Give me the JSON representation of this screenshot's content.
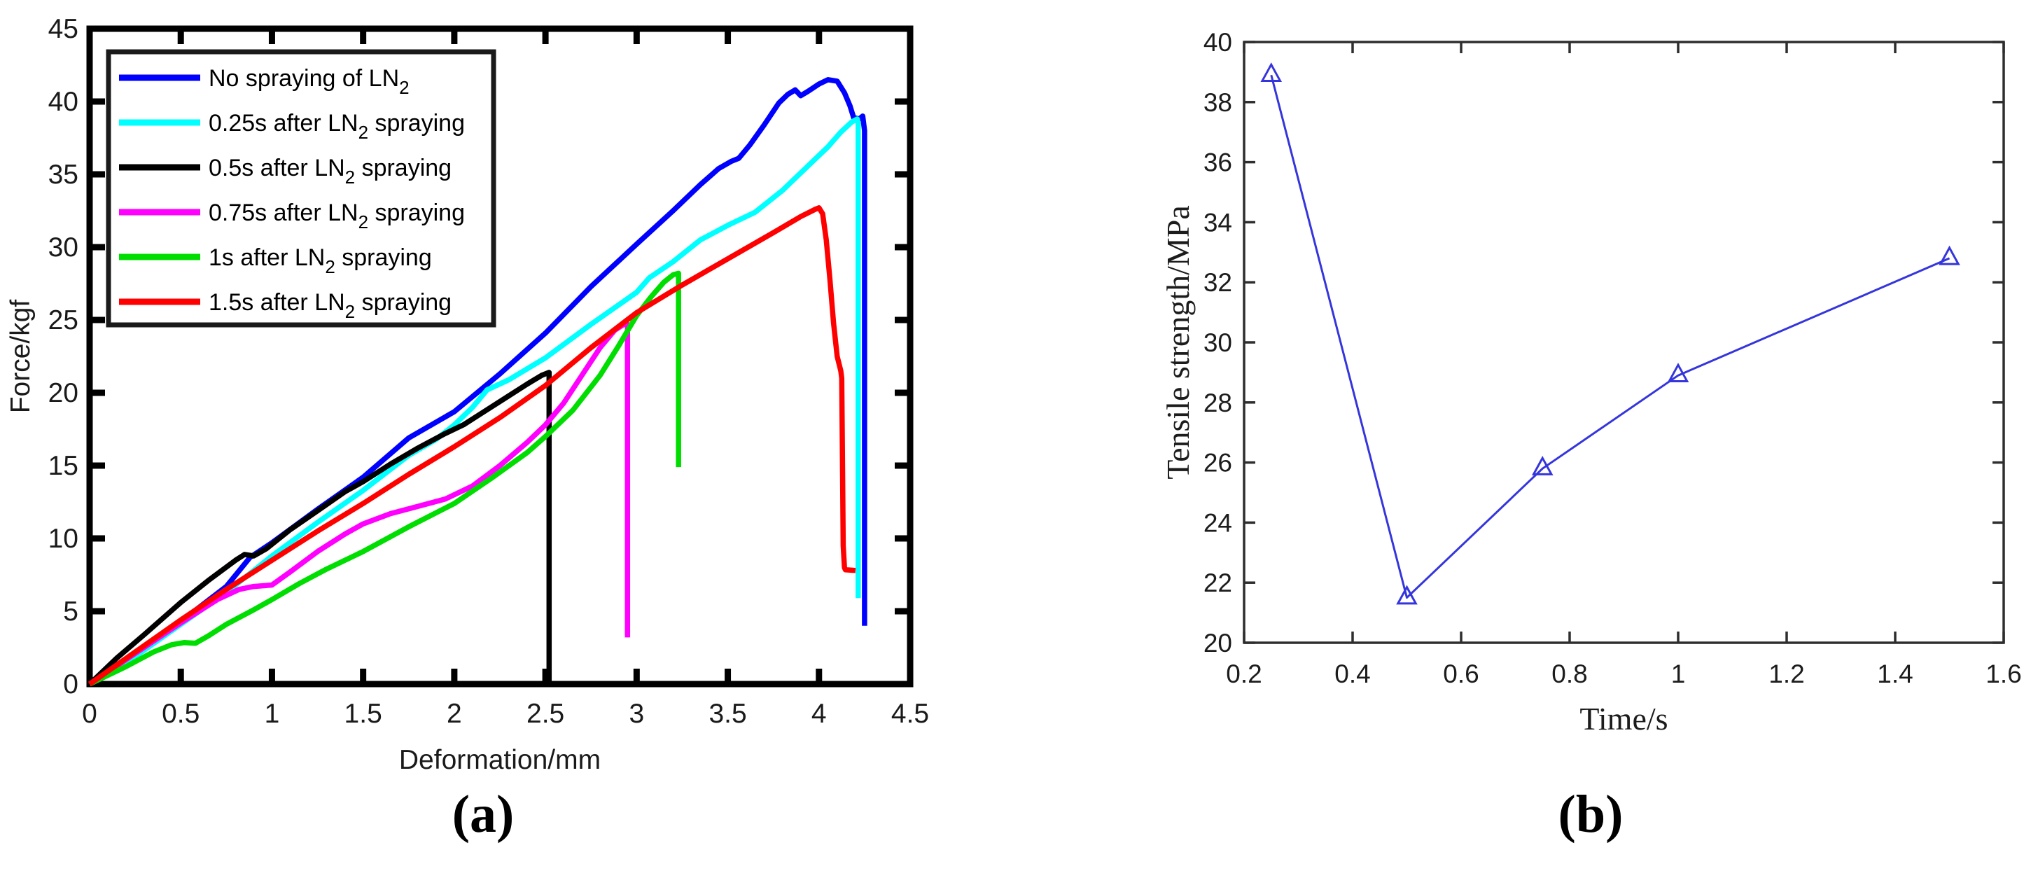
{
  "figure": {
    "captions": {
      "a": "(a)",
      "b": "(b)"
    }
  },
  "chart_data": [
    {
      "id": "a",
      "type": "line",
      "title": "",
      "xlabel": "Deformation/mm",
      "ylabel": "Force/kgf",
      "xlim": [
        0,
        4.5
      ],
      "ylim": [
        0,
        45
      ],
      "xticks": [
        0,
        0.5,
        1,
        1.5,
        2,
        2.5,
        3,
        3.5,
        4,
        4.5
      ],
      "xtick_labels": [
        "0",
        "0.5",
        "1",
        "1.5",
        "2",
        "2.5",
        "3",
        "3.5",
        "4",
        "4.5"
      ],
      "yticks": [
        0,
        5,
        10,
        15,
        20,
        25,
        30,
        35,
        40,
        45
      ],
      "ytick_labels": [
        "0",
        "5",
        "10",
        "15",
        "20",
        "25",
        "30",
        "35",
        "40",
        "45"
      ],
      "grid": false,
      "legend_position": "top-left",
      "series": [
        {
          "name": "no-spraying",
          "color": "#0000ff",
          "label_parts": [
            {
              "t": "No spraying of LN"
            },
            {
              "t": "2",
              "sub": true
            }
          ],
          "points": [
            [
              0,
              0
            ],
            [
              0.25,
              2.0
            ],
            [
              0.5,
              4.3
            ],
            [
              0.75,
              6.7
            ],
            [
              0.88,
              8.7
            ],
            [
              1,
              9.7
            ],
            [
              1.25,
              12.0
            ],
            [
              1.5,
              14.2
            ],
            [
              1.75,
              16.9
            ],
            [
              2,
              18.7
            ],
            [
              2.25,
              21.3
            ],
            [
              2.5,
              24.1
            ],
            [
              2.75,
              27.3
            ],
            [
              3,
              30.2
            ],
            [
              3.2,
              32.5
            ],
            [
              3.35,
              34.3
            ],
            [
              3.45,
              35.4
            ],
            [
              3.52,
              35.9
            ],
            [
              3.56,
              36.1
            ],
            [
              3.62,
              37.0
            ],
            [
              3.7,
              38.4
            ],
            [
              3.78,
              39.9
            ],
            [
              3.83,
              40.5
            ],
            [
              3.87,
              40.8
            ],
            [
              3.9,
              40.4
            ],
            [
              3.94,
              40.7
            ],
            [
              4.0,
              41.2
            ],
            [
              4.05,
              41.5
            ],
            [
              4.1,
              41.4
            ],
            [
              4.14,
              40.6
            ],
            [
              4.17,
              39.7
            ],
            [
              4.19,
              38.9
            ],
            [
              4.22,
              38.8
            ],
            [
              4.24,
              39.0
            ],
            [
              4.25,
              38.0
            ],
            [
              4.25,
              4.0
            ]
          ]
        },
        {
          "name": "0.25s-after",
          "color": "#00ffff",
          "label_parts": [
            {
              "t": "0.25s after LN"
            },
            {
              "t": "2",
              "sub": true
            },
            {
              "t": " spraying"
            }
          ],
          "points": [
            [
              0,
              0
            ],
            [
              0.25,
              1.9
            ],
            [
              0.5,
              4.1
            ],
            [
              0.75,
              6.3
            ],
            [
              1,
              8.8
            ],
            [
              1.25,
              11.1
            ],
            [
              1.5,
              13.3
            ],
            [
              1.75,
              15.7
            ],
            [
              1.9,
              16.8
            ],
            [
              2,
              17.8
            ],
            [
              2.1,
              19.0
            ],
            [
              2.18,
              20.2
            ],
            [
              2.3,
              20.9
            ],
            [
              2.5,
              22.4
            ],
            [
              2.75,
              24.7
            ],
            [
              3,
              26.9
            ],
            [
              3.07,
              27.9
            ],
            [
              3.2,
              29.0
            ],
            [
              3.35,
              30.5
            ],
            [
              3.5,
              31.5
            ],
            [
              3.65,
              32.4
            ],
            [
              3.8,
              33.9
            ],
            [
              3.95,
              35.7
            ],
            [
              4.05,
              36.9
            ],
            [
              4.12,
              37.9
            ],
            [
              4.18,
              38.6
            ],
            [
              4.21,
              38.8
            ],
            [
              4.215,
              38.5
            ],
            [
              4.215,
              5.9
            ]
          ]
        },
        {
          "name": "0.5s-after",
          "color": "#000000",
          "label_parts": [
            {
              "t": "0.5s after LN"
            },
            {
              "t": "2",
              "sub": true
            },
            {
              "t": " spraying"
            }
          ],
          "points": [
            [
              0,
              0
            ],
            [
              0.15,
              1.8
            ],
            [
              0.3,
              3.4
            ],
            [
              0.5,
              5.6
            ],
            [
              0.65,
              7.1
            ],
            [
              0.8,
              8.5
            ],
            [
              0.85,
              8.9
            ],
            [
              0.9,
              8.8
            ],
            [
              0.97,
              9.3
            ],
            [
              1.1,
              10.6
            ],
            [
              1.25,
              11.9
            ],
            [
              1.4,
              13.2
            ],
            [
              1.5,
              13.9
            ],
            [
              1.65,
              15.1
            ],
            [
              1.8,
              16.2
            ],
            [
              1.95,
              17.2
            ],
            [
              2.05,
              17.8
            ],
            [
              2.15,
              18.6
            ],
            [
              2.3,
              19.8
            ],
            [
              2.4,
              20.6
            ],
            [
              2.48,
              21.2
            ],
            [
              2.52,
              21.4
            ],
            [
              2.52,
              0.1
            ]
          ]
        },
        {
          "name": "0.75s-after",
          "color": "#ff00ff",
          "label_parts": [
            {
              "t": "0.75s after LN"
            },
            {
              "t": "2",
              "sub": true
            },
            {
              "t": " spraying"
            }
          ],
          "points": [
            [
              0,
              0
            ],
            [
              0.25,
              2.1
            ],
            [
              0.5,
              4.2
            ],
            [
              0.7,
              5.8
            ],
            [
              0.82,
              6.5
            ],
            [
              0.9,
              6.7
            ],
            [
              1,
              6.8
            ],
            [
              1.1,
              7.7
            ],
            [
              1.25,
              9.1
            ],
            [
              1.4,
              10.3
            ],
            [
              1.5,
              11.0
            ],
            [
              1.65,
              11.7
            ],
            [
              1.8,
              12.2
            ],
            [
              1.95,
              12.7
            ],
            [
              2.1,
              13.6
            ],
            [
              2.25,
              15.0
            ],
            [
              2.4,
              16.6
            ],
            [
              2.5,
              17.8
            ],
            [
              2.6,
              19.3
            ],
            [
              2.7,
              21.2
            ],
            [
              2.8,
              23.1
            ],
            [
              2.88,
              24.3
            ],
            [
              2.93,
              24.7
            ],
            [
              2.95,
              24.7
            ],
            [
              2.95,
              3.2
            ]
          ]
        },
        {
          "name": "1s-after",
          "color": "#00dd00",
          "label_parts": [
            {
              "t": "1s after LN"
            },
            {
              "t": "2",
              "sub": true
            },
            {
              "t": " spraying"
            }
          ],
          "points": [
            [
              0,
              0
            ],
            [
              0.2,
              1.2
            ],
            [
              0.35,
              2.2
            ],
            [
              0.45,
              2.7
            ],
            [
              0.52,
              2.85
            ],
            [
              0.58,
              2.8
            ],
            [
              0.65,
              3.3
            ],
            [
              0.75,
              4.1
            ],
            [
              0.9,
              5.1
            ],
            [
              1,
              5.8
            ],
            [
              1.15,
              6.9
            ],
            [
              1.3,
              7.9
            ],
            [
              1.5,
              9.1
            ],
            [
              1.75,
              10.8
            ],
            [
              2,
              12.4
            ],
            [
              2.2,
              14.1
            ],
            [
              2.4,
              15.9
            ],
            [
              2.5,
              17.0
            ],
            [
              2.65,
              18.8
            ],
            [
              2.8,
              21.2
            ],
            [
              2.9,
              23.2
            ],
            [
              3,
              25.3
            ],
            [
              3.08,
              26.6
            ],
            [
              3.15,
              27.6
            ],
            [
              3.2,
              28.1
            ],
            [
              3.23,
              28.2
            ],
            [
              3.23,
              14.9
            ]
          ]
        },
        {
          "name": "1.5s-after",
          "color": "#ff0000",
          "label_parts": [
            {
              "t": "1.5s after LN"
            },
            {
              "t": "2",
              "sub": true
            },
            {
              "t": " spraying"
            }
          ],
          "points": [
            [
              0,
              0
            ],
            [
              0.25,
              2.2
            ],
            [
              0.5,
              4.4
            ],
            [
              0.75,
              6.5
            ],
            [
              1,
              8.5
            ],
            [
              1.25,
              10.5
            ],
            [
              1.5,
              12.4
            ],
            [
              1.75,
              14.4
            ],
            [
              2,
              16.3
            ],
            [
              2.25,
              18.3
            ],
            [
              2.5,
              20.5
            ],
            [
              2.75,
              23.1
            ],
            [
              3,
              25.5
            ],
            [
              3.25,
              27.4
            ],
            [
              3.5,
              29.2
            ],
            [
              3.75,
              31.0
            ],
            [
              3.9,
              32.1
            ],
            [
              3.98,
              32.6
            ],
            [
              4.0,
              32.7
            ],
            [
              4.02,
              32.3
            ],
            [
              4.04,
              30.5
            ],
            [
              4.06,
              27.8
            ],
            [
              4.08,
              24.8
            ],
            [
              4.1,
              22.5
            ],
            [
              4.12,
              21.5
            ],
            [
              4.125,
              21.0
            ],
            [
              4.13,
              14.0
            ],
            [
              4.133,
              9.5
            ],
            [
              4.14,
              8.0
            ],
            [
              4.145,
              7.85
            ],
            [
              4.2,
              7.8
            ]
          ]
        }
      ]
    },
    {
      "id": "b",
      "type": "line",
      "title": "",
      "xlabel": "Time/s",
      "ylabel": "Tensile strength/MPa",
      "xlim": [
        0.2,
        1.6
      ],
      "ylim": [
        20,
        40
      ],
      "xticks": [
        0.2,
        0.4,
        0.6,
        0.8,
        1,
        1.2,
        1.4,
        1.6
      ],
      "xtick_labels": [
        "0.2",
        "0.4",
        "0.6",
        "0.8",
        "1",
        "1.2",
        "1.4",
        "1.6"
      ],
      "yticks": [
        20,
        22,
        24,
        26,
        28,
        30,
        32,
        34,
        36,
        38,
        40
      ],
      "ytick_labels": [
        "20",
        "22",
        "24",
        "26",
        "28",
        "30",
        "32",
        "34",
        "36",
        "38",
        "40"
      ],
      "grid": false,
      "legend_position": "none",
      "series": [
        {
          "name": "tensile-strength",
          "color": "#3535dd",
          "marker": "triangle-up",
          "points": [
            [
              0.25,
              38.9
            ],
            [
              0.5,
              21.5
            ],
            [
              0.75,
              25.8
            ],
            [
              1,
              28.9
            ],
            [
              1.5,
              32.8
            ]
          ]
        }
      ]
    }
  ]
}
